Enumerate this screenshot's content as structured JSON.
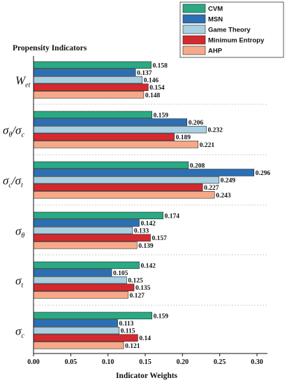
{
  "chart_data": {
    "type": "bar",
    "orientation": "horizontal",
    "ylabel": "Propensity Indicators",
    "xlabel": "Indicator Weights",
    "xlim": [
      0,
      0.32
    ],
    "xticks": [
      "0.00",
      "0.05",
      "0.10",
      "0.15",
      "0.20",
      "0.25",
      "0.30"
    ],
    "legend_position": "top-right",
    "categories": [
      {
        "base": "W",
        "sub": "et",
        "den_base": "",
        "den_sub": ""
      },
      {
        "base": "σ",
        "sub": "θ",
        "den_base": "σ",
        "den_sub": "c"
      },
      {
        "base": "σ",
        "sub": "c",
        "den_base": "σ",
        "den_sub": "t"
      },
      {
        "base": "σ",
        "sub": "θ",
        "den_base": "",
        "den_sub": ""
      },
      {
        "base": "σ",
        "sub": "t",
        "den_base": "",
        "den_sub": ""
      },
      {
        "base": "σ",
        "sub": "c",
        "den_base": "",
        "den_sub": ""
      }
    ],
    "series": [
      {
        "name": "CVM",
        "color": "#2aa984",
        "values": [
          0.158,
          0.159,
          0.208,
          0.174,
          0.142,
          0.159
        ],
        "labels": [
          "0.158",
          "0.159",
          "0.208",
          "0.174",
          "0.142",
          "0.159"
        ]
      },
      {
        "name": "MSN",
        "color": "#2b6fb5",
        "values": [
          0.137,
          0.206,
          0.296,
          0.142,
          0.105,
          0.113
        ],
        "labels": [
          "0.137",
          "0.206",
          "0.296",
          "0.142",
          "0.105",
          "0.113"
        ]
      },
      {
        "name": "Game Theory",
        "color": "#a9cfe3",
        "values": [
          0.146,
          0.232,
          0.249,
          0.133,
          0.125,
          0.115
        ],
        "labels": [
          "0.146",
          "0.232",
          "0.249",
          "0.133",
          "0.125",
          "0.115"
        ]
      },
      {
        "name": "Minimum Entropy",
        "color": "#d42a2f",
        "values": [
          0.154,
          0.189,
          0.227,
          0.157,
          0.135,
          0.14
        ],
        "labels": [
          "0.154",
          "0.189",
          "0.227",
          "0.157",
          "0.135",
          "0.14"
        ]
      },
      {
        "name": "AHP",
        "color": "#f6a989",
        "values": [
          0.148,
          0.221,
          0.243,
          0.139,
          0.127,
          0.121
        ],
        "labels": [
          "0.148",
          "0.221",
          "0.243",
          "0.139",
          "0.127",
          "0.121"
        ]
      }
    ]
  }
}
